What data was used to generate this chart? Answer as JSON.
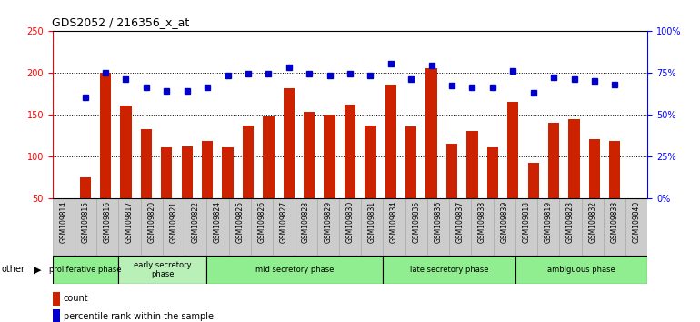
{
  "title": "GDS2052 / 216356_x_at",
  "samples": [
    "GSM109814",
    "GSM109815",
    "GSM109816",
    "GSM109817",
    "GSM109820",
    "GSM109821",
    "GSM109822",
    "GSM109824",
    "GSM109825",
    "GSM109826",
    "GSM109827",
    "GSM109828",
    "GSM109829",
    "GSM109830",
    "GSM109831",
    "GSM109834",
    "GSM109835",
    "GSM109836",
    "GSM109837",
    "GSM109838",
    "GSM109839",
    "GSM109818",
    "GSM109819",
    "GSM109823",
    "GSM109832",
    "GSM109833",
    "GSM109840"
  ],
  "counts": [
    75,
    200,
    160,
    132,
    111,
    112,
    118,
    110,
    137,
    148,
    181,
    153,
    150,
    162,
    137,
    186,
    135,
    205,
    115,
    130,
    111,
    165,
    92,
    140,
    144,
    120,
    118
  ],
  "percentiles": [
    60,
    75,
    71,
    66,
    64,
    64,
    66,
    73,
    74,
    74,
    78,
    74,
    73,
    74,
    73,
    80,
    71,
    79,
    67,
    66,
    66,
    76,
    63,
    72,
    71,
    70,
    68
  ],
  "phases": [
    {
      "name": "proliferative phase",
      "start": 0,
      "end": 3,
      "color": "#90EE90"
    },
    {
      "name": "early secretory\nphase",
      "start": 3,
      "end": 7,
      "color": "#b8f0b8"
    },
    {
      "name": "mid secretory phase",
      "start": 7,
      "end": 15,
      "color": "#90EE90"
    },
    {
      "name": "late secretory phase",
      "start": 15,
      "end": 21,
      "color": "#90EE90"
    },
    {
      "name": "ambiguous phase",
      "start": 21,
      "end": 27,
      "color": "#90EE90"
    }
  ],
  "ylim_left": [
    50,
    250
  ],
  "ylim_right": [
    0,
    100
  ],
  "yticks_left": [
    50,
    100,
    150,
    200,
    250
  ],
  "yticks_right": [
    0,
    25,
    50,
    75,
    100
  ],
  "bar_color": "#cc2200",
  "dot_color": "#0000cc",
  "plot_bg": "#ffffff",
  "tick_bg": "#cccccc",
  "other_label": "other"
}
